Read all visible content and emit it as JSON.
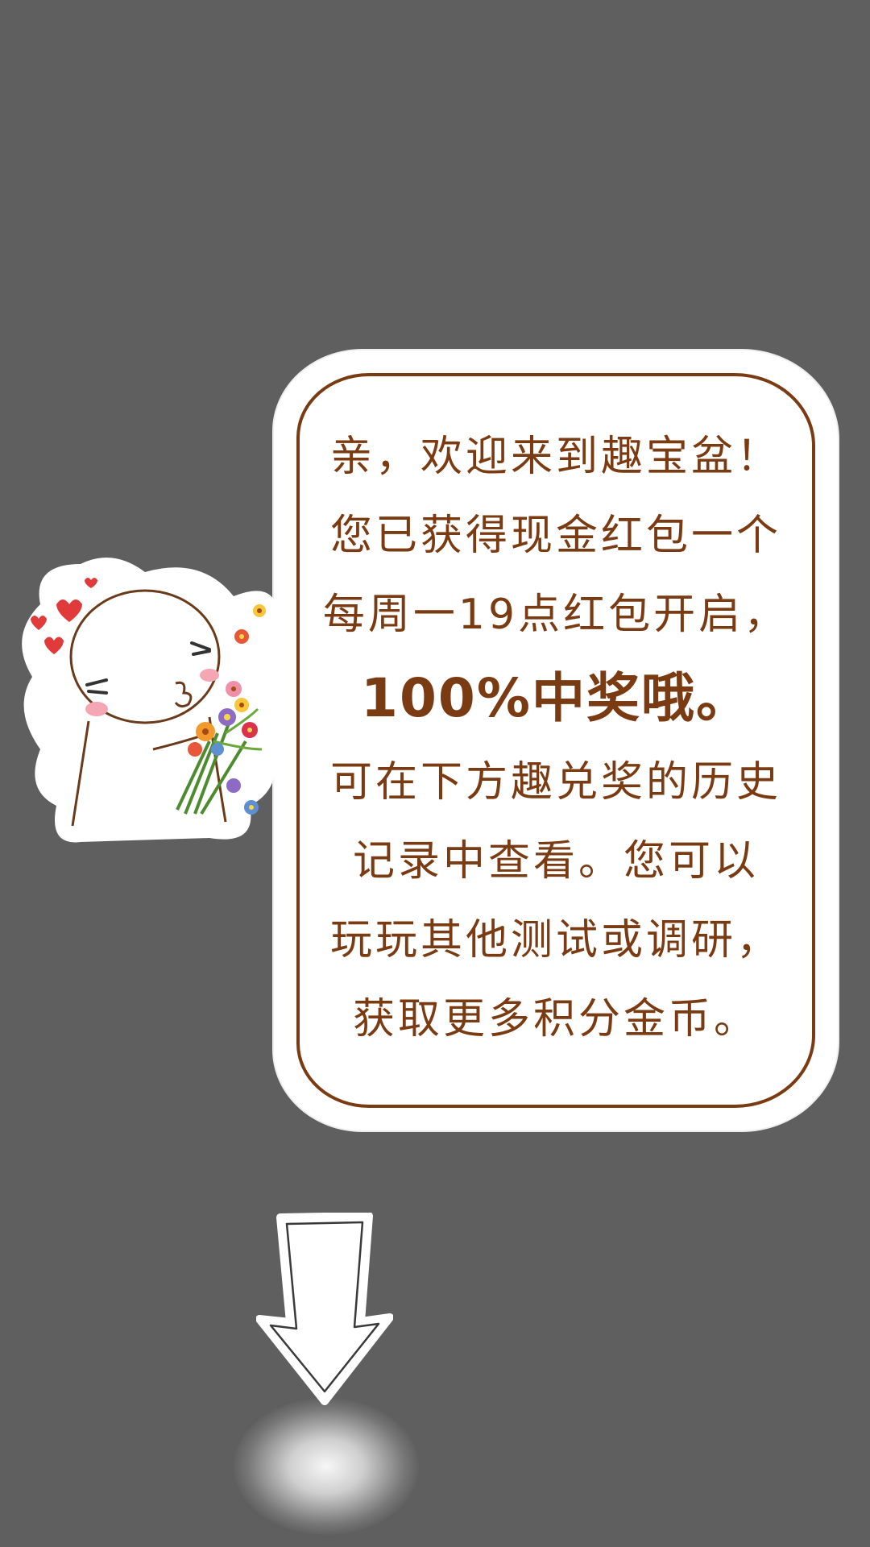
{
  "bubble": {
    "lines": [
      "亲，欢迎来到趣宝盆！",
      "您已获得现金红包一个",
      "每周一19点红包开启，",
      "100%中奖哦。",
      "可在下方趣兑奖的历史",
      "记录中查看。您可以",
      "玩玩其他测试或调研，",
      "获取更多积分金币。"
    ]
  },
  "colors": {
    "background": "#5f5f5f",
    "text": "#7a3b12",
    "bubble": "#ffffff"
  },
  "icons": {
    "character": "cartoon-character-with-flowers-icon",
    "arrow": "down-arrow-icon"
  }
}
